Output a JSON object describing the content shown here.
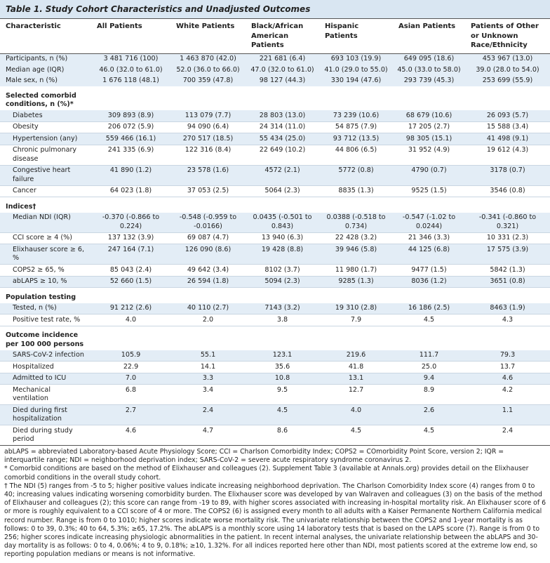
{
  "header": {
    "label": "Table 1.",
    "title": "Study Cohort Characteristics and Unadjusted Outcomes"
  },
  "table": {
    "columns": [
      "Characteristic",
      "All Patients",
      "White Patients",
      "Black/African American Patients",
      "Hispanic Patients",
      "Asian Patients",
      "Patients of Other or Unknown Race/Ethnicity"
    ],
    "sections": [
      {
        "rows": [
          [
            "Participants, n (%)",
            "3 481 716 (100)",
            "1 463 870 (42.0)",
            "221 681 (6.4)",
            "693 103 (19.9)",
            "649 095 (18.6)",
            "453 967 (13.0)"
          ],
          [
            "Median age (IQR)",
            "46.0 (32.0 to 61.0)",
            "52.0 (36.0 to 66.0)",
            "47.0 (32.0 to 61.0)",
            "41.0 (29.0 to 55.0)",
            "45.0 (33.0 to 58.0)",
            "39.0 (28.0 to 54.0)"
          ],
          [
            "Male sex, n (%)",
            "1 676 118 (48.1)",
            "700 359 (47.8)",
            "98 127 (44.3)",
            "330 194 (47.6)",
            "293 739 (45.3)",
            "253 699 (55.9)"
          ]
        ]
      },
      {
        "heading": "Selected comorbid conditions, n (%)*",
        "rows": [
          [
            "Diabetes",
            "309 893 (8.9)",
            "113 079 (7.7)",
            "28 803 (13.0)",
            "73 239 (10.6)",
            "68 679 (10.6)",
            "26 093 (5.7)"
          ],
          [
            "Obesity",
            "206 072 (5.9)",
            "94 090 (6.4)",
            "24 314 (11.0)",
            "54 875 (7.9)",
            "17 205 (2.7)",
            "15 588 (3.4)"
          ],
          [
            "Hypertension (any)",
            "559 466 (16.1)",
            "270 517 (18.5)",
            "55 434 (25.0)",
            "93 712 (13.5)",
            "98 305 (15.1)",
            "41 498 (9.1)"
          ],
          [
            "Chronic pulmonary disease",
            "241 335 (6.9)",
            "122 316 (8.4)",
            "22 649 (10.2)",
            "44 806 (6.5)",
            "31 952 (4.9)",
            "19 612 (4.3)"
          ],
          [
            "Congestive heart failure",
            "41 890 (1.2)",
            "23 578 (1.6)",
            "4572 (2.1)",
            "5772 (0.8)",
            "4790 (0.7)",
            "3178 (0.7)"
          ],
          [
            "Cancer",
            "64 023 (1.8)",
            "37 053 (2.5)",
            "5064 (2.3)",
            "8835 (1.3)",
            "9525 (1.5)",
            "3546 (0.8)"
          ]
        ]
      },
      {
        "heading": "Indices†",
        "rows": [
          [
            "Median NDI (IQR)",
            "-0.370 (-0.866 to 0.224)",
            "-0.548 (-0.959 to -0.0166)",
            "0.0435 (-0.501 to 0.843)",
            "0.0388 (-0.518 to 0.734)",
            "-0.547 (-1.02 to 0.0244)",
            "-0.341 (-0.860 to 0.321)"
          ],
          [
            "CCI score ≥ 4 (%)",
            "137 132 (3.9)",
            "69 087 (4.7)",
            "13 940 (6.3)",
            "22 428 (3.2)",
            "21 346 (3.3)",
            "10 331 (2.3)"
          ],
          [
            "Elixhauser score ≥ 6, %",
            "247 164 (7.1)",
            "126 090 (8.6)",
            "19 428 (8.8)",
            "39 946 (5.8)",
            "44 125 (6.8)",
            "17 575 (3.9)"
          ],
          [
            "COPS2 ≥ 65, %",
            "85 043 (2.4)",
            "49 642 (3.4)",
            "8102 (3.7)",
            "11 980 (1.7)",
            "9477 (1.5)",
            "5842 (1.3)"
          ],
          [
            "abLAPS ≥ 10, %",
            "52 660 (1.5)",
            "26 594 (1.8)",
            "5094 (2.3)",
            "9285 (1.3)",
            "8036 (1.2)",
            "3651 (0.8)"
          ]
        ]
      },
      {
        "heading": "Population testing",
        "rows": [
          [
            "Tested, n (%)",
            "91 212 (2.6)",
            "40 110 (2.7)",
            "7143 (3.2)",
            "19 310 (2.8)",
            "16 186 (2.5)",
            "8463 (1.9)"
          ],
          [
            "Positive test rate, %",
            "4.0",
            "2.0",
            "3.8",
            "7.9",
            "4.5",
            "4.3"
          ]
        ]
      },
      {
        "heading": "Outcome incidence per 100 000 persons",
        "rows": [
          [
            "SARS-CoV-2 infection",
            "105.9",
            "55.1",
            "123.1",
            "219.6",
            "111.7",
            "79.3"
          ],
          [
            "Hospitalized",
            "22.9",
            "14.1",
            "35.6",
            "41.8",
            "25.0",
            "13.7"
          ],
          [
            "Admitted to ICU",
            "7.0",
            "3.3",
            "10.8",
            "13.1",
            "9.4",
            "4.6"
          ],
          [
            "Mechanical ventilation",
            "6.8",
            "3.4",
            "9.5",
            "12.7",
            "8.9",
            "4.2"
          ],
          [
            "Died during first hospitalization",
            "2.7",
            "2.4",
            "4.5",
            "4.0",
            "2.6",
            "1.1"
          ],
          [
            "Died during study period",
            "4.6",
            "4.7",
            "8.6",
            "4.5",
            "4.5",
            "2.4"
          ]
        ]
      }
    ]
  },
  "footnotes": [
    "abLAPS = abbreviated Laboratory-based Acute Physiology Score; CCI = Charlson Comorbidity Index; COPS2 = COmorbidity Point Score, version 2; IQR = interquartile range; NDI = neighborhood deprivation index; SARS-CoV-2 = severe acute respiratory syndrome coronavirus 2.",
    "* Comorbid conditions are based on the method of Elixhauser and colleagues (2). Supplement Table 3 (available at Annals.org) provides detail on the Elixhauser comorbid conditions in the overall study cohort.",
    "† The NDI (5) ranges from -5 to 5; higher positive values indicate increasing neighborhood deprivation. The Charlson Comorbidity Index score (4) ranges from 0 to 40; increasing values indicating worsening comorbidity burden. The Elixhauser score was developed by van Walraven and colleagues (3) on the basis of the method of Elixhauser and colleagues (2); this score can range from -19 to 89, with higher scores associated with increasing in-hospital mortality risk. An Elixhauser score of 6 or more is roughly equivalent to a CCI score of 4 or more. The COPS2 (6) is assigned every month to all adults with a Kaiser Permanente Northern California medical record number. Range is from 0 to 1010; higher scores indicate worse mortality risk. The univariate relationship between the COPS2 and 1-year mortality is as follows: 0 to 39, 0.3%; 40 to 64, 5.3%; ≥65, 17.2%. The abLAPS is a monthly score using 14 laboratory tests that is based on the LAPS score (7). Range is from 0 to 256; higher scores indicate increasing physiologic abnormalities in the patient. In recent internal analyses, the univariate relationship between the abLAPS and 30-day mortality is as follows: 0 to 4, 0.06%; 4 to 9, 0.18%; ≥10, 1.32%. For all indices reported here other than NDI, most patients scored at the extreme low end, so reporting population medians or means is not informative."
  ]
}
